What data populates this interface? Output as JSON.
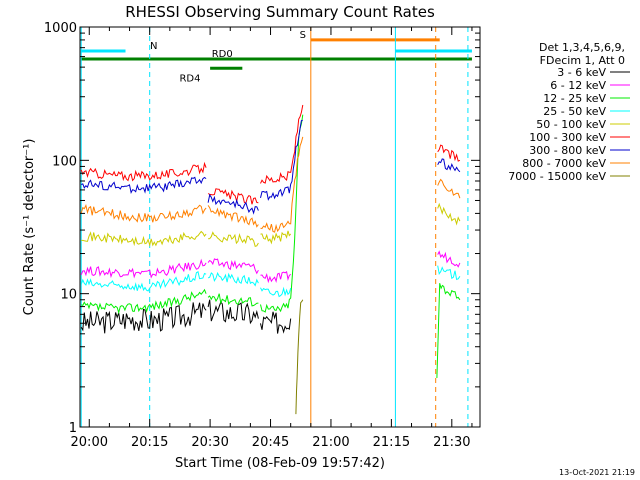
{
  "chart_data": {
    "type": "line",
    "title": "RHESSI Observing Summary Count Rates",
    "xlabel": "Start Time (08-Feb-09 19:57:42)",
    "ylabel": "Count Rate (s⁻¹ detector⁻¹)",
    "yscale": "log",
    "ylim": [
      1,
      1000
    ],
    "xlim": [
      "19:57:42",
      "21:37:00"
    ],
    "x_ticks": [
      "20:00",
      "20:15",
      "20:30",
      "20:45",
      "21:00",
      "21:15",
      "21:30"
    ],
    "y_ticks": [
      "1",
      "10",
      "100",
      "1000"
    ],
    "footer": "13-Oct-2021 21:19",
    "legend_header": [
      "Det 1,3,4,5,6,9,",
      "FDecim 1, Att 0"
    ],
    "colors": {
      "3-6": "#000000",
      "6-12": "#ff00ff",
      "12-25": "#00ee00",
      "25-50": "#00ffff",
      "50-100": "#cccc00",
      "100-300": "#ff0000",
      "300-800": "#0000cc",
      "800-7000": "#ff8000",
      "7000-15000": "#808000",
      "flag_green": "#008000",
      "flag_cyan": "#00e5ff",
      "flag_orange": "#ff8000"
    },
    "series": [
      {
        "name": "3 - 6 keV",
        "key": "3-6",
        "segments": [
          {
            "t": [
              "19:58",
              "20:05",
              "20:10",
              "20:15",
              "20:20",
              "20:25",
              "20:29"
            ],
            "y": [
              6,
              6.2,
              6.5,
              6.3,
              6.5,
              7,
              7.5
            ]
          },
          {
            "t": [
              "20:29.5",
              "20:35",
              "20:40",
              "20:42"
            ],
            "y": [
              7.5,
              7.2,
              7,
              6.5
            ]
          },
          {
            "t": [
              "20:42.5",
              "20:46",
              "20:49",
              "20:50"
            ],
            "y": [
              6,
              6,
              6.2,
              6.5
            ]
          }
        ]
      },
      {
        "name": "6 - 12 keV",
        "key": "6-12",
        "segments": [
          {
            "t": [
              "19:58",
              "20:05",
              "20:10",
              "20:15",
              "20:20",
              "20:25",
              "20:29"
            ],
            "y": [
              15,
              14.5,
              14.5,
              14,
              15,
              16,
              17
            ]
          },
          {
            "t": [
              "20:29.5",
              "20:35",
              "20:40",
              "20:42"
            ],
            "y": [
              17,
              16.5,
              16,
              15
            ]
          },
          {
            "t": [
              "20:42.5",
              "20:46",
              "20:49",
              "20:50"
            ],
            "y": [
              13.5,
              13,
              13.5,
              14
            ]
          },
          {
            "t": [
              "21:26.5",
              "21:28",
              "21:30",
              "21:32"
            ],
            "y": [
              20,
              19,
              18,
              17
            ]
          }
        ]
      },
      {
        "name": "12 - 25 keV",
        "key": "12-25",
        "segments": [
          {
            "t": [
              "19:58",
              "20:05",
              "20:10",
              "20:15",
              "20:20",
              "20:25",
              "20:29"
            ],
            "y": [
              8,
              7.8,
              7.8,
              8,
              8.5,
              9.5,
              10
            ]
          },
          {
            "t": [
              "20:29.5",
              "20:35",
              "20:40",
              "20:42"
            ],
            "y": [
              9.5,
              9,
              8.8,
              8.5
            ]
          },
          {
            "t": [
              "20:42.5",
              "20:46",
              "20:49",
              "20:50",
              "20:51",
              "20:52",
              "20:53"
            ],
            "y": [
              8,
              7.5,
              8,
              9,
              25,
              150,
              220
            ]
          },
          {
            "t": [
              "21:26.3",
              "21:27",
              "21:28",
              "21:30",
              "21:32"
            ],
            "y": [
              2.5,
              12,
              11,
              10,
              9
            ]
          }
        ]
      },
      {
        "name": "25 - 50 keV",
        "key": "25-50",
        "segments": [
          {
            "t": [
              "19:58",
              "20:05",
              "20:10",
              "20:15",
              "20:20",
              "20:25",
              "20:29"
            ],
            "y": [
              12,
              11.5,
              11.5,
              11,
              12,
              13,
              14
            ]
          },
          {
            "t": [
              "20:29.5",
              "20:35",
              "20:40",
              "20:42"
            ],
            "y": [
              13.5,
              13,
              12.5,
              12
            ]
          },
          {
            "t": [
              "20:42.5",
              "20:46",
              "20:49",
              "20:50"
            ],
            "y": [
              10.5,
              10,
              10.5,
              11
            ]
          },
          {
            "t": [
              "21:26.5",
              "21:28",
              "21:30",
              "21:32"
            ],
            "y": [
              15,
              14.5,
              14,
              13.5
            ]
          }
        ]
      },
      {
        "name": "50 - 100 keV",
        "key": "50-100",
        "segments": [
          {
            "t": [
              "19:58",
              "20:05",
              "20:10",
              "20:15",
              "20:20",
              "20:25",
              "20:29"
            ],
            "y": [
              27,
              26,
              25,
              24,
              25,
              27,
              28
            ]
          },
          {
            "t": [
              "20:29.5",
              "20:35",
              "20:40",
              "20:42"
            ],
            "y": [
              27,
              26,
              25,
              24
            ]
          },
          {
            "t": [
              "20:42.5",
              "20:46",
              "20:49",
              "20:50"
            ],
            "y": [
              26,
              26,
              27,
              28
            ]
          },
          {
            "t": [
              "21:26.5",
              "21:28",
              "21:30",
              "21:32"
            ],
            "y": [
              45,
              42,
              38,
              35
            ]
          }
        ]
      },
      {
        "name": "100 - 300 keV",
        "key": "100-300",
        "segments": [
          {
            "t": [
              "19:58",
              "20:05",
              "20:10",
              "20:15",
              "20:20",
              "20:25",
              "20:29"
            ],
            "y": [
              82,
              78,
              76,
              77,
              79,
              84,
              88
            ]
          },
          {
            "t": [
              "20:29.5",
              "20:33",
              "20:37",
              "20:40",
              "20:42"
            ],
            "y": [
              60,
              56,
              53,
              50,
              48
            ]
          },
          {
            "t": [
              "20:42.5",
              "20:46",
              "20:49",
              "20:50",
              "20:51",
              "20:52",
              "20:53"
            ],
            "y": [
              72,
              72,
              75,
              80,
              120,
              200,
              260
            ]
          },
          {
            "t": [
              "21:26.5",
              "21:28",
              "21:30",
              "21:32"
            ],
            "y": [
              125,
              118,
              110,
              100
            ]
          }
        ]
      },
      {
        "name": "300 - 800 keV",
        "key": "300-800",
        "segments": [
          {
            "t": [
              "19:58",
              "20:05",
              "20:10",
              "20:15",
              "20:20",
              "20:25",
              "20:29"
            ],
            "y": [
              67,
              64,
              62,
              62,
              64,
              69,
              73
            ]
          },
          {
            "t": [
              "20:29.5",
              "20:33",
              "20:37",
              "20:40",
              "20:42"
            ],
            "y": [
              52,
              49,
              46,
              44,
              42
            ]
          },
          {
            "t": [
              "20:42.5",
              "20:46",
              "20:49",
              "20:50",
              "20:51",
              "20:52",
              "20:53"
            ],
            "y": [
              55,
              55,
              58,
              62,
              100,
              160,
              200
            ]
          },
          {
            "t": [
              "21:26.5",
              "21:28",
              "21:30",
              "21:32"
            ],
            "y": [
              100,
              95,
              88,
              82
            ]
          }
        ]
      },
      {
        "name": "800 - 7000 keV",
        "key": "800-7000",
        "segments": [
          {
            "t": [
              "19:58",
              "20:05",
              "20:10",
              "20:15",
              "20:20",
              "20:25",
              "20:29"
            ],
            "y": [
              43,
              40,
              38,
              37,
              38,
              41,
              44
            ]
          },
          {
            "t": [
              "20:29.5",
              "20:33",
              "20:37",
              "20:40",
              "20:42"
            ],
            "y": [
              43,
              40,
              37,
              35,
              33
            ]
          },
          {
            "t": [
              "20:42.5",
              "20:46",
              "20:49",
              "20:50",
              "20:51",
              "20:52",
              "20:53"
            ],
            "y": [
              32,
              31,
              32,
              35,
              70,
              110,
              150
            ]
          },
          {
            "t": [
              "21:26.5",
              "21:28",
              "21:30",
              "21:32"
            ],
            "y": [
              70,
              65,
              58,
              52
            ]
          }
        ]
      },
      {
        "name": "7000 - 15000 keV",
        "key": "7000-15000",
        "segments": [
          {
            "t": [
              "20:51.3",
              "20:51.6",
              "20:52",
              "20:52.5",
              "20:53"
            ],
            "y": [
              1.2,
              2.5,
              5,
              8,
              9
            ]
          }
        ]
      }
    ],
    "flags": [
      {
        "label": "N",
        "color": "flag_cyan",
        "level": 660,
        "start": "19:58",
        "end": "20:09",
        "label_at": "20:16"
      },
      {
        "label": "",
        "color": "flag_cyan",
        "level": 660,
        "start": "21:16",
        "end": "21:35",
        "label_at": ""
      },
      {
        "label": "S",
        "color": "flag_orange",
        "level": 800,
        "start": "20:55",
        "end": "21:27",
        "label_at": "20:53"
      },
      {
        "label": "",
        "color": "flag_green",
        "level": 575,
        "start": "19:58",
        "end": "21:35",
        "label_at": ""
      },
      {
        "label": "RD0",
        "color": "flag_green",
        "level": 575,
        "start": "20:29",
        "end": "20:42",
        "label_at": "20:33"
      },
      {
        "label": "RD4",
        "color": "flag_green",
        "level": 490,
        "start": "20:30",
        "end": "20:38",
        "label_at": "20:25"
      }
    ],
    "vlines": [
      {
        "t": "19:58",
        "color": "flag_cyan",
        "style": "solid"
      },
      {
        "t": "20:15",
        "color": "flag_cyan",
        "style": "dashed"
      },
      {
        "t": "20:55",
        "color": "flag_orange",
        "style": "solid"
      },
      {
        "t": "21:16",
        "color": "flag_cyan",
        "style": "solid"
      },
      {
        "t": "21:26",
        "color": "flag_orange",
        "style": "dashed"
      },
      {
        "t": "21:34",
        "color": "flag_cyan",
        "style": "dashed"
      }
    ]
  }
}
